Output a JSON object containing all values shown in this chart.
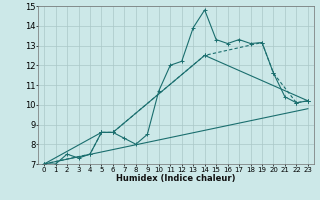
{
  "xlabel": "Humidex (Indice chaleur)",
  "bg_color": "#cce8e8",
  "grid_color": "#aac8c8",
  "line_color": "#1a6e6e",
  "xlim": [
    -0.5,
    23.5
  ],
  "ylim": [
    7,
    15
  ],
  "xticks": [
    0,
    1,
    2,
    3,
    4,
    5,
    6,
    7,
    8,
    9,
    10,
    11,
    12,
    13,
    14,
    15,
    16,
    17,
    18,
    19,
    20,
    21,
    22,
    23
  ],
  "yticks": [
    7,
    8,
    9,
    10,
    11,
    12,
    13,
    14,
    15
  ],
  "line1_x": [
    0,
    1,
    2,
    3,
    4,
    5,
    6,
    7,
    8,
    9,
    10,
    11,
    12,
    13,
    14,
    15,
    16,
    17,
    18,
    19,
    20,
    21,
    22,
    23
  ],
  "line1_y": [
    7.0,
    7.0,
    7.5,
    7.3,
    7.5,
    8.6,
    8.6,
    8.3,
    8.0,
    8.5,
    10.7,
    12.0,
    12.2,
    13.9,
    14.8,
    13.3,
    13.1,
    13.3,
    13.1,
    13.15,
    11.6,
    10.4,
    10.1,
    10.2
  ],
  "line2_x": [
    0,
    4,
    5,
    6,
    14,
    19,
    20,
    22,
    23
  ],
  "line2_y": [
    7.0,
    7.5,
    8.6,
    8.6,
    12.5,
    13.15,
    11.6,
    10.1,
    10.2
  ],
  "line3_x": [
    0,
    23
  ],
  "line3_y": [
    7.0,
    9.8
  ],
  "line4_x": [
    0,
    5,
    6,
    14,
    23
  ],
  "line4_y": [
    7.0,
    8.6,
    8.6,
    12.5,
    10.2
  ]
}
